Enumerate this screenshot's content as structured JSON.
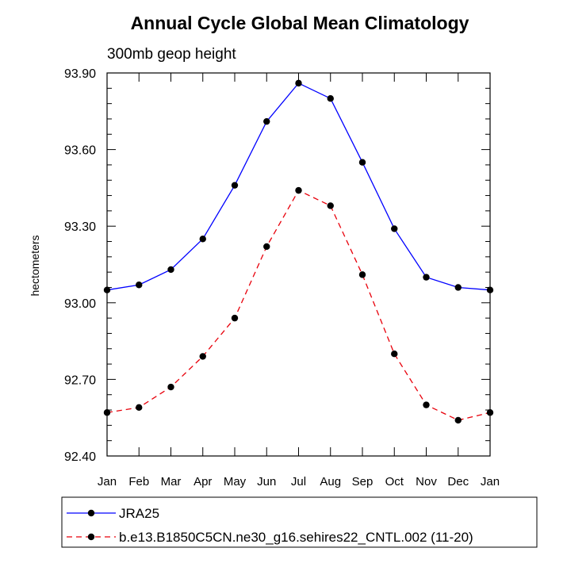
{
  "chart_data": {
    "type": "line",
    "title": "Annual Cycle Global Mean Climatology",
    "subtitle": "300mb geop height",
    "xlabel": "",
    "ylabel": "hectometers",
    "categories": [
      "Jan",
      "Feb",
      "Mar",
      "Apr",
      "May",
      "Jun",
      "Jul",
      "Aug",
      "Sep",
      "Oct",
      "Nov",
      "Dec",
      "Jan"
    ],
    "ylim": [
      92.4,
      93.9
    ],
    "yticks": [
      "93.90",
      "93.60",
      "93.30",
      "93.00",
      "92.70",
      "92.40"
    ],
    "ytick_values": [
      93.9,
      93.6,
      93.3,
      93.0,
      92.7,
      92.4
    ],
    "series": [
      {
        "name": "JRA25",
        "color": "#0000ff",
        "style": "solid",
        "values": [
          93.05,
          93.07,
          93.13,
          93.25,
          93.46,
          93.71,
          93.86,
          93.8,
          93.55,
          93.29,
          93.1,
          93.06,
          93.05
        ]
      },
      {
        "name": "b.e13.B1850C5CN.ne30_g16.sehires22_CNTL.002 (11-20)",
        "color": "#e8000b",
        "style": "dashed",
        "values": [
          92.57,
          92.59,
          92.67,
          92.79,
          92.94,
          93.22,
          93.44,
          93.38,
          93.11,
          92.8,
          92.6,
          92.54,
          92.57
        ]
      }
    ],
    "legend_position": "bottom"
  }
}
